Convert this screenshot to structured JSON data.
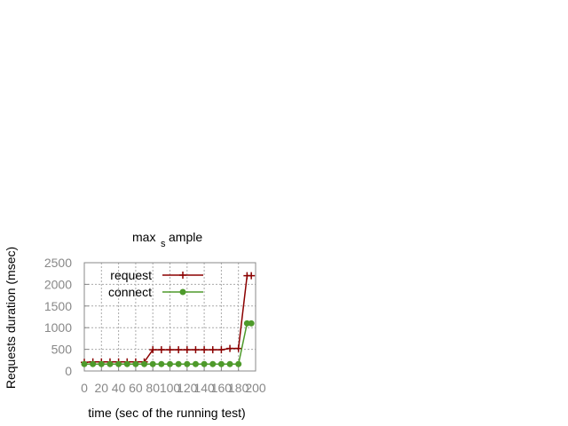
{
  "chart_data": {
    "type": "line",
    "title_main": "max",
    "title_sub": "s",
    "title_rest": "ample",
    "xlabel": "time (sec of the running test)",
    "ylabel": "Requests duration (msec)",
    "xlim": [
      0,
      200
    ],
    "ylim": [
      0,
      2500
    ],
    "x_ticks": [
      0,
      20,
      40,
      60,
      80,
      100,
      120,
      140,
      160,
      180,
      200
    ],
    "y_ticks": [
      0,
      500,
      1000,
      1500,
      2000,
      2500
    ],
    "grid": true,
    "legend_position": "top-left",
    "x": [
      0,
      10,
      20,
      30,
      40,
      50,
      60,
      70,
      80,
      90,
      100,
      110,
      120,
      130,
      140,
      150,
      160,
      170,
      180,
      190,
      195
    ],
    "series": [
      {
        "name": "request",
        "color": "#8b0000",
        "marker": "plus",
        "values": [
          200,
          210,
          210,
          210,
          210,
          210,
          210,
          210,
          490,
          490,
          490,
          490,
          490,
          490,
          490,
          490,
          490,
          520,
          520,
          2200,
          2200
        ]
      },
      {
        "name": "connect",
        "color": "#4e9a2b",
        "marker": "circle",
        "values": [
          160,
          160,
          160,
          160,
          160,
          160,
          160,
          160,
          160,
          160,
          160,
          160,
          160,
          160,
          160,
          160,
          160,
          160,
          160,
          1100,
          1100
        ]
      }
    ]
  }
}
